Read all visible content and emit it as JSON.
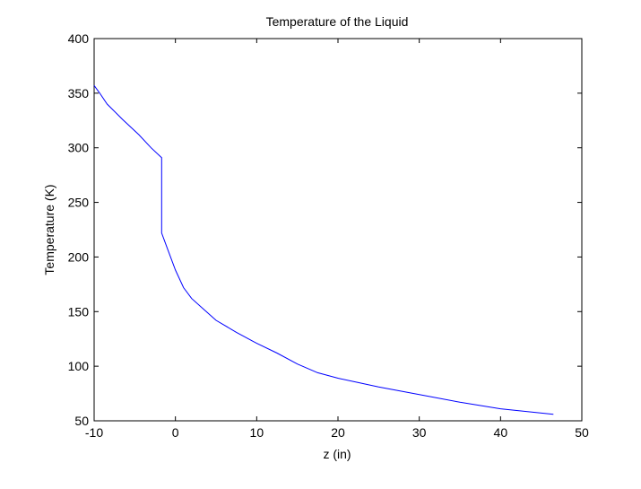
{
  "chart_data": {
    "type": "line",
    "title": "Temperature of the Liquid",
    "xlabel": "z (in)",
    "ylabel": "Temperature (K)",
    "xlim": [
      -10,
      50
    ],
    "ylim": [
      50,
      400
    ],
    "xticks": [
      -10,
      0,
      10,
      20,
      30,
      40,
      50
    ],
    "yticks": [
      50,
      100,
      150,
      200,
      250,
      300,
      350,
      400
    ],
    "grid": false,
    "line_color": "#0000ff",
    "series": [
      {
        "x": [
          -10,
          -9.3,
          -8.4,
          -6.5,
          -4.5,
          -3.0,
          -1.7,
          -1.7,
          -1.0,
          0.0,
          1.0,
          2.0,
          3.5,
          5.0,
          7.5,
          10.0,
          12.5,
          15.0,
          17.5,
          20.0,
          22.5,
          25.0,
          30.0,
          35.0,
          40.0,
          46.5
        ],
        "y": [
          357,
          350,
          340,
          326,
          312,
          300,
          291,
          222,
          208,
          188,
          172,
          162,
          152,
          142,
          131,
          121,
          112,
          102,
          94,
          89,
          85,
          81,
          74,
          67,
          61,
          56
        ]
      }
    ]
  }
}
